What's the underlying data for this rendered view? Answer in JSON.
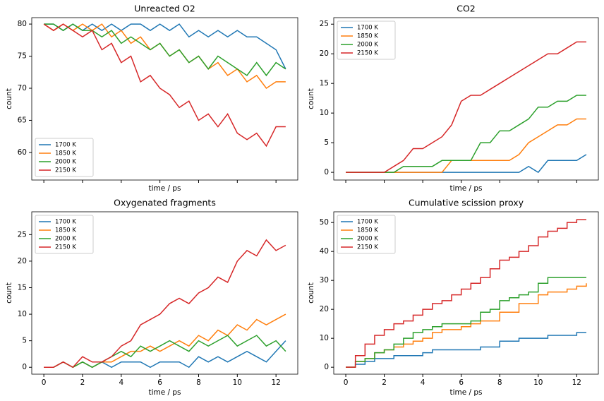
{
  "chart_data": [
    {
      "type": "line",
      "title": "Unreacted O2",
      "xlabel": "time / ps",
      "ylabel": "count",
      "x": [
        0,
        0.5,
        1,
        1.5,
        2,
        2.5,
        3,
        3.5,
        4,
        4.5,
        5,
        5.5,
        6,
        6.5,
        7,
        7.5,
        8,
        8.5,
        9,
        9.5,
        10,
        10.5,
        11,
        11.5,
        12,
        12.5
      ],
      "series": [
        {
          "name": "1700 K",
          "color": "#1f77b4",
          "values": [
            80,
            80,
            79,
            80,
            79,
            80,
            79,
            80,
            79,
            80,
            80,
            79,
            80,
            79,
            80,
            78,
            79,
            78,
            79,
            78,
            79,
            78,
            78,
            77,
            76,
            73
          ]
        },
        {
          "name": "1850 K",
          "color": "#ff7f0e",
          "values": [
            80,
            79,
            80,
            79,
            80,
            79,
            80,
            78,
            79,
            77,
            78,
            76,
            77,
            75,
            76,
            74,
            75,
            73,
            74,
            72,
            73,
            71,
            72,
            70,
            71,
            71
          ]
        },
        {
          "name": "2000 K",
          "color": "#2ca02c",
          "values": [
            80,
            80,
            79,
            80,
            79,
            79,
            78,
            79,
            77,
            78,
            77,
            76,
            77,
            75,
            76,
            74,
            75,
            73,
            75,
            74,
            73,
            72,
            74,
            72,
            74,
            73
          ]
        },
        {
          "name": "2150 K",
          "color": "#d62728",
          "values": [
            80,
            79,
            80,
            79,
            78,
            79,
            76,
            77,
            74,
            75,
            71,
            72,
            70,
            69,
            67,
            68,
            65,
            66,
            64,
            66,
            63,
            62,
            63,
            61,
            64,
            64
          ]
        }
      ],
      "xlim": [
        -0.625,
        13.125
      ],
      "ylim": [
        55.7,
        81
      ],
      "xticks": [
        0,
        2,
        4,
        6,
        8,
        10,
        12
      ],
      "yticks": [
        60,
        65,
        70,
        75,
        80
      ],
      "xtick_labels": false,
      "legend": "lower left",
      "step": false
    },
    {
      "type": "line",
      "title": "CO2",
      "xlabel": "time / ps",
      "ylabel": "count",
      "x": [
        0,
        0.5,
        1,
        1.5,
        2,
        2.5,
        3,
        3.5,
        4,
        4.5,
        5,
        5.5,
        6,
        6.5,
        7,
        7.5,
        8,
        8.5,
        9,
        9.5,
        10,
        10.5,
        11,
        11.5,
        12,
        12.5
      ],
      "series": [
        {
          "name": "1700 K",
          "color": "#1f77b4",
          "values": [
            0,
            0,
            0,
            0,
            0,
            0,
            0,
            0,
            0,
            0,
            0,
            0,
            0,
            0,
            0,
            0,
            0,
            0,
            0,
            1,
            0,
            2,
            2,
            2,
            2,
            3
          ]
        },
        {
          "name": "1850 K",
          "color": "#ff7f0e",
          "values": [
            0,
            0,
            0,
            0,
            0,
            0,
            0,
            0,
            0,
            0,
            0,
            2,
            2,
            2,
            2,
            2,
            2,
            2,
            3,
            5,
            6,
            7,
            8,
            8,
            9,
            9
          ]
        },
        {
          "name": "2000 K",
          "color": "#2ca02c",
          "values": [
            0,
            0,
            0,
            0,
            0,
            0,
            1,
            1,
            1,
            1,
            2,
            2,
            2,
            2,
            5,
            5,
            7,
            7,
            8,
            9,
            11,
            11,
            12,
            12,
            13,
            13
          ]
        },
        {
          "name": "2150 K",
          "color": "#d62728",
          "values": [
            0,
            0,
            0,
            0,
            0,
            1,
            2,
            4,
            4,
            5,
            6,
            8,
            12,
            13,
            13,
            14,
            15,
            16,
            17,
            18,
            19,
            20,
            20,
            21,
            22,
            22
          ]
        }
      ],
      "xlim": [
        -0.625,
        13.125
      ],
      "ylim": [
        -1.3,
        26.1
      ],
      "xticks": [
        0,
        2,
        4,
        6,
        8,
        10,
        12
      ],
      "yticks": [
        0,
        5,
        10,
        15,
        20,
        25
      ],
      "xtick_labels": false,
      "legend": "upper left",
      "step": false
    },
    {
      "type": "line",
      "title": "Oxygenated fragments",
      "xlabel": "time / ps",
      "ylabel": "count",
      "x": [
        0,
        0.5,
        1,
        1.5,
        2,
        2.5,
        3,
        3.5,
        4,
        4.5,
        5,
        5.5,
        6,
        6.5,
        7,
        7.5,
        8,
        8.5,
        9,
        9.5,
        10,
        10.5,
        11,
        11.5,
        12,
        12.5
      ],
      "series": [
        {
          "name": "1700 K",
          "color": "#1f77b4",
          "values": [
            0,
            0,
            1,
            0,
            1,
            0,
            1,
            0,
            1,
            1,
            1,
            0,
            1,
            1,
            1,
            0,
            2,
            1,
            2,
            1,
            2,
            3,
            2,
            1,
            3,
            5
          ]
        },
        {
          "name": "1850 K",
          "color": "#ff7f0e",
          "values": [
            0,
            0,
            1,
            0,
            1,
            0,
            1,
            1,
            2,
            3,
            3,
            4,
            3,
            4,
            5,
            4,
            6,
            5,
            7,
            6,
            8,
            7,
            9,
            8,
            9,
            10
          ]
        },
        {
          "name": "2000 K",
          "color": "#2ca02c",
          "values": [
            0,
            0,
            1,
            0,
            1,
            0,
            1,
            2,
            3,
            2,
            4,
            3,
            4,
            5,
            4,
            3,
            5,
            4,
            5,
            6,
            4,
            5,
            6,
            4,
            5,
            3
          ]
        },
        {
          "name": "2150 K",
          "color": "#d62728",
          "values": [
            0,
            0,
            1,
            0,
            2,
            1,
            1,
            2,
            4,
            5,
            8,
            9,
            10,
            12,
            13,
            12,
            14,
            15,
            17,
            16,
            20,
            22,
            21,
            24,
            22,
            23
          ]
        }
      ],
      "xlim": [
        -0.625,
        13.125
      ],
      "ylim": [
        -1.3,
        29.3
      ],
      "xticks": [
        0,
        2,
        4,
        6,
        8,
        10,
        12
      ],
      "yticks": [
        0,
        5,
        10,
        15,
        20,
        25
      ],
      "xtick_labels": true,
      "legend": "upper left",
      "step": false
    },
    {
      "type": "line",
      "title": "Cumulative scission proxy",
      "xlabel": "time / ps",
      "ylabel": "count",
      "x": [
        0,
        0.5,
        1,
        1.5,
        2,
        2.5,
        3,
        3.5,
        4,
        4.5,
        5,
        5.5,
        6,
        6.5,
        7,
        7.5,
        8,
        8.5,
        9,
        9.5,
        10,
        10.5,
        11,
        11.5,
        12,
        12.5
      ],
      "series": [
        {
          "name": "1700 K",
          "color": "#1f77b4",
          "values": [
            0,
            1,
            2,
            3,
            3,
            4,
            4,
            4,
            5,
            6,
            6,
            6,
            6,
            6,
            7,
            7,
            9,
            9,
            10,
            10,
            10,
            11,
            11,
            11,
            12,
            12
          ]
        },
        {
          "name": "1850 K",
          "color": "#ff7f0e",
          "values": [
            0,
            2,
            3,
            5,
            6,
            7,
            8,
            9,
            10,
            12,
            13,
            13,
            14,
            15,
            16,
            16,
            19,
            19,
            22,
            22,
            25,
            26,
            26,
            27,
            28,
            29
          ]
        },
        {
          "name": "2000 K",
          "color": "#2ca02c",
          "values": [
            0,
            2,
            3,
            5,
            6,
            8,
            10,
            12,
            13,
            14,
            15,
            15,
            15,
            16,
            19,
            20,
            23,
            24,
            25,
            26,
            29,
            31,
            31,
            31,
            31,
            31
          ]
        },
        {
          "name": "2150 K",
          "color": "#d62728",
          "values": [
            0,
            4,
            8,
            11,
            13,
            15,
            16,
            18,
            20,
            22,
            23,
            25,
            27,
            29,
            31,
            34,
            37,
            38,
            40,
            42,
            45,
            47,
            48,
            50,
            51,
            51
          ]
        }
      ],
      "xlim": [
        -0.625,
        13.125
      ],
      "ylim": [
        -2.4,
        53.7
      ],
      "xticks": [
        0,
        2,
        4,
        6,
        8,
        10,
        12
      ],
      "yticks": [
        0,
        10,
        20,
        30,
        40,
        50
      ],
      "xtick_labels": true,
      "legend": "upper left",
      "step": true
    }
  ]
}
